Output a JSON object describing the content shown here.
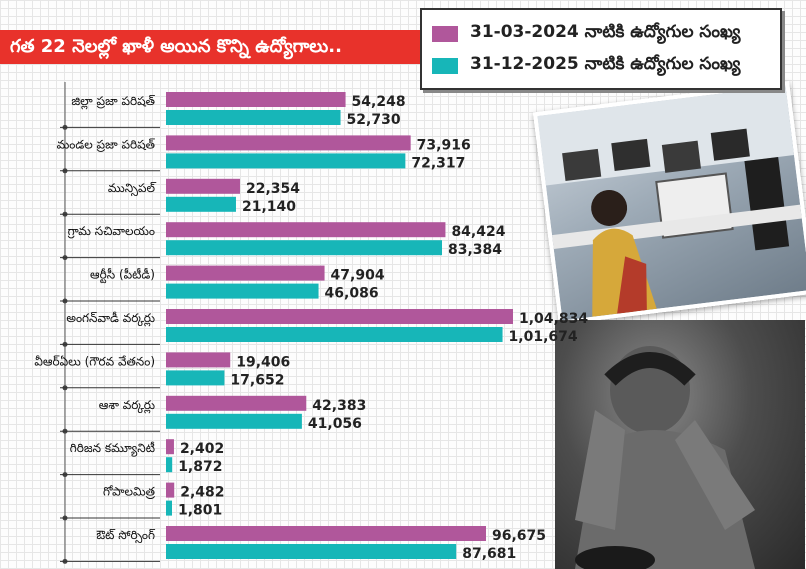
{
  "header": {
    "title": "గత 22 నెలల్లో ఖాళీ అయిన కొన్ని ఉద్యోగాలు.."
  },
  "legend": {
    "items": [
      {
        "label": "31-03-2024 నాటికి ఉద్యోగుల సంఖ్య",
        "color": "#b0579b"
      },
      {
        "label": "31-12-2025 నాటికి ఉద్యోగుల సంఖ్య",
        "color": "#17b6b8"
      }
    ]
  },
  "images": {
    "office": "office-workers-photo",
    "person": "distressed-man-photo"
  },
  "chart_data": {
    "type": "bar",
    "orientation": "horizontal",
    "grid": true,
    "categories": [
      "జిల్లా ప్రజా పరిషత్",
      "మండల ప్రజా పరిషత్",
      "మున్సిపల్",
      "గ్రామ సచివాలయం",
      "ఆర్టీసీ (పీటీడీ)",
      "అంగన్‌వాడీ వర్కర్లు",
      "వీఆర్ఏలు (గౌరవ వేతనం)",
      "ఆశా వర్కర్లు",
      "గిరిజన కమ్యూనిటీ",
      "గోపాలమిత్ర",
      "ఔట్ సోర్సింగ్"
    ],
    "series": [
      {
        "name": "31-03-2024 నాటికి ఉద్యోగుల సంఖ్య",
        "color": "#b0579b",
        "values": [
          54248,
          73916,
          22354,
          84424,
          47904,
          104834,
          19406,
          42383,
          2402,
          2482,
          96675
        ],
        "labels": [
          "54,248",
          "73,916",
          "22,354",
          "84,424",
          "47,904",
          "1,04,834",
          "19,406",
          "42,383",
          "2,402",
          "2,482",
          "96,675"
        ]
      },
      {
        "name": "31-12-2025 నాటికి ఉద్యోగుల సంఖ్య",
        "color": "#17b6b8",
        "values": [
          52730,
          72317,
          21140,
          83384,
          46086,
          101674,
          17652,
          41056,
          1872,
          1801,
          87681
        ],
        "labels": [
          "52,730",
          "72,317",
          "21,140",
          "83,384",
          "46,086",
          "1,01,674",
          "17,652",
          "41,056",
          "1,872",
          "1,801",
          "87,681"
        ]
      }
    ]
  }
}
